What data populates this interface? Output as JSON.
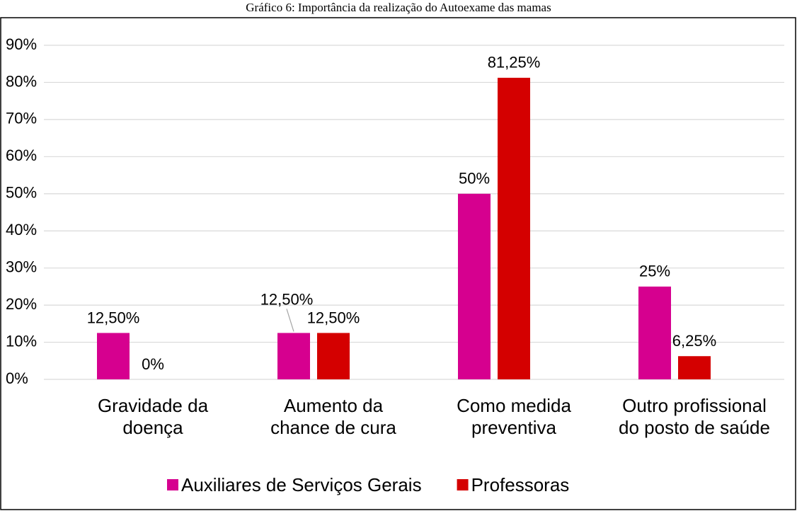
{
  "chart_data": {
    "type": "bar",
    "title": "Gráfico 6: Importância da realização do Autoexame das mamas",
    "categories": [
      "Gravidade da doença",
      "Aumento da chance de cura",
      "Como medida preventiva",
      "Outro profissional do posto de saúde"
    ],
    "series": [
      {
        "name": "Auxiliares de Serviços Gerais",
        "color": "#d6008f",
        "values": [
          12.5,
          12.5,
          50,
          25
        ],
        "value_labels": [
          "12,50%",
          "12,50%",
          "50%",
          "25%"
        ]
      },
      {
        "name": "Professoras",
        "color": "#d40000",
        "values": [
          0,
          12.5,
          81.25,
          6.25
        ],
        "value_labels": [
          "0%",
          "12,50%",
          "81,25%",
          "6,25%"
        ]
      }
    ],
    "ylim": [
      0,
      90
    ],
    "yticks": [
      {
        "value": 0,
        "label": "0%"
      },
      {
        "value": 10,
        "label": "10%"
      },
      {
        "value": 20,
        "label": "20%"
      },
      {
        "value": 30,
        "label": "30%"
      },
      {
        "value": 40,
        "label": "40%"
      },
      {
        "value": 50,
        "label": "50%"
      },
      {
        "value": 60,
        "label": "60%"
      },
      {
        "value": 70,
        "label": "70%"
      },
      {
        "value": 80,
        "label": "80%"
      },
      {
        "value": 90,
        "label": "90%"
      }
    ],
    "grid": true,
    "legend": "bottom"
  }
}
